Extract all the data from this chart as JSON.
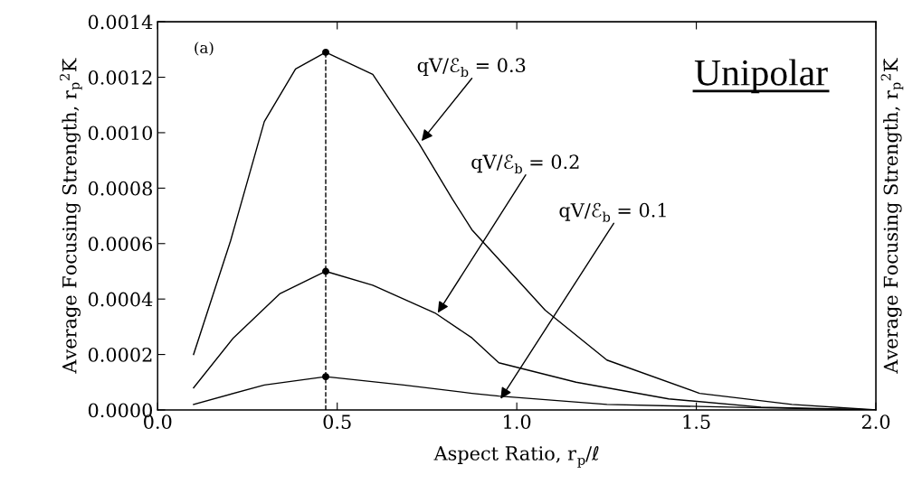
{
  "chart_data": {
    "type": "line",
    "title": "Unipolar",
    "xlabel": "Aspect Ratio, r$_{p}$/ℓ",
    "ylabel": "Average Focusing Strength, r$_{p}$$^{2}$K̄",
    "y2label": "Average Focusing Strength, r$_{p}$$^{2}$K̄",
    "xlim": [
      0.0,
      2.0
    ],
    "xticks": [
      {
        "value": 0,
        "label": "0.0"
      },
      0.5,
      {
        "value": 1,
        "label": "1.0"
      },
      1.5,
      {
        "value": 2,
        "label": "2.0"
      }
    ],
    "ylim": [
      0.0,
      0.0014
    ],
    "yticks": [
      {
        "value": 0,
        "label": "0.0000"
      },
      {
        "value": 0.0002,
        "label": "0.0002"
      },
      {
        "value": 0.0004,
        "label": "0.0004"
      },
      {
        "value": 0.0006,
        "label": "0.0006"
      },
      {
        "value": 0.0008,
        "label": "0.0008"
      },
      {
        "value": 0.001,
        "label": "0.0010"
      },
      {
        "value": 0.0012,
        "label": "0.0012"
      },
      {
        "value": 0.0014,
        "label": "0.0014"
      }
    ],
    "grid": false,
    "series": [
      {
        "color": "#000000",
        "line_style": "solid",
        "x": [
          0.1,
          0.203,
          0.297,
          0.384,
          0.468,
          0.599,
          0.728,
          0.821,
          0.875,
          1.079,
          1.251,
          1.509,
          1.766,
          2.0
        ],
        "values": [
          0.0002,
          0.00061,
          0.00104,
          0.00123,
          0.00129,
          0.00121,
          0.00096,
          0.00076,
          0.00065,
          0.00036,
          0.00018,
          6e-05,
          2e-05,
          0.0
        ]
      },
      {
        "color": "#000000",
        "line_style": "solid",
        "x": [
          0.1,
          0.211,
          0.341,
          0.468,
          0.599,
          0.772,
          0.875,
          0.95,
          1.165,
          1.423,
          1.68,
          2.0
        ],
        "values": [
          8e-05,
          0.00026,
          0.00042,
          0.0005,
          0.00045,
          0.00035,
          0.00026,
          0.00017,
          0.0001,
          4e-05,
          1e-05,
          0.0
        ]
      },
      {
        "color": "#000000",
        "line_style": "solid",
        "x": [
          0.1,
          0.297,
          0.468,
          0.685,
          0.875,
          0.95,
          1.251,
          1.594,
          2.0
        ],
        "values": [
          2e-05,
          9e-05,
          0.00012,
          9e-05,
          6e-05,
          5e-05,
          2e-05,
          1e-05,
          0.0
        ]
      },
      {
        "color": "#000000",
        "line_style": "dashed",
        "x": [
          0.468,
          0.468
        ],
        "values": [
          0.0,
          0.00129
        ]
      },
      {
        "type": "scatter",
        "color": "#000000",
        "marker": "circle",
        "x": [
          0.468,
          0.468,
          0.468
        ],
        "values": [
          0.00129,
          0.0005,
          0.00012
        ]
      }
    ],
    "annotations": [
      "(a)",
      {
        "text": "qV/ℰ$_{b}$ = 0.3",
        "x": 0.735,
        "y": 0.00097
      },
      {
        "text": "qV/ℰ$_{b}$ = 0.2",
        "x": 0.78,
        "y": 0.00035
      },
      {
        "text": "qV/ℰ$_{b}$ = 0.1",
        "x": 0.955,
        "y": 4e-05
      }
    ]
  }
}
